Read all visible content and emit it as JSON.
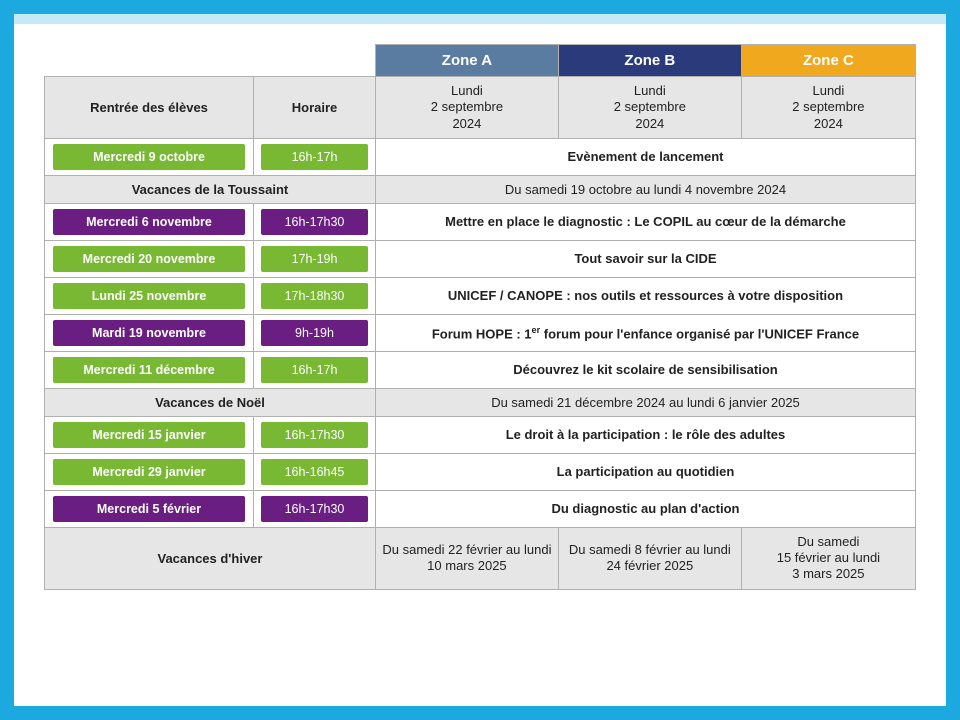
{
  "colors": {
    "frame": "#1ca9e0",
    "headerBand": "#c6e9f7",
    "zoneA": "#5b7ca1",
    "zoneB": "#2a3a7a",
    "zoneC": "#f0a81e",
    "green": "#78b833",
    "purple": "#6a1e82",
    "greyCell": "#e6e6e6",
    "border": "#b0b0b0",
    "text": "#222222"
  },
  "zones": {
    "a": "Zone A",
    "b": "Zone B",
    "c": "Zone C"
  },
  "headers": {
    "rentree": "Rentrée des élèves",
    "horaire": "Horaire"
  },
  "rentreeDates": {
    "a": "Lundi\n2 septembre\n2024",
    "b": "Lundi\n2 septembre\n2024",
    "c": "Lundi\n2 septembre\n2024"
  },
  "rows": [
    {
      "kind": "event",
      "color": "green",
      "date": "Mercredi 9 octobre",
      "time": "16h-17h",
      "desc": "Evènement de lancement"
    },
    {
      "kind": "holiday-merged",
      "label": "Vacances de la Toussaint",
      "range": "Du samedi 19 octobre au lundi 4 novembre 2024"
    },
    {
      "kind": "event",
      "color": "purple",
      "date": "Mercredi 6 novembre",
      "time": "16h-17h30",
      "desc": "Mettre en place le diagnostic : Le COPIL au cœur de la démarche"
    },
    {
      "kind": "event",
      "color": "green",
      "date": "Mercredi 20 novembre",
      "time": "17h-19h",
      "desc": "Tout savoir sur la CIDE"
    },
    {
      "kind": "event",
      "color": "green",
      "date": "Lundi 25 novembre",
      "time": "17h-18h30",
      "desc": "UNICEF / CANOPE : nos outils et ressources à votre disposition"
    },
    {
      "kind": "event",
      "color": "purple",
      "date": "Mardi 19 novembre",
      "time": "9h-19h",
      "descHtml": "Forum HOPE : 1<sup>er</sup> forum pour l'enfance organisé par l'UNICEF France"
    },
    {
      "kind": "event",
      "color": "green",
      "date": "Mercredi 11 décembre",
      "time": "16h-17h",
      "desc": "Découvrez le kit scolaire de sensibilisation"
    },
    {
      "kind": "holiday-merged",
      "label": "Vacances de Noël",
      "range": "Du samedi 21 décembre 2024 au lundi 6 janvier 2025"
    },
    {
      "kind": "event",
      "color": "green",
      "date": "Mercredi 15 janvier",
      "time": "16h-17h30",
      "desc": "Le droit à la participation : le rôle des adultes"
    },
    {
      "kind": "event",
      "color": "green",
      "date": "Mercredi 29 janvier",
      "time": "16h-16h45",
      "desc": "La participation au quotidien"
    },
    {
      "kind": "event",
      "color": "purple",
      "date": "Mercredi 5 février",
      "time": "16h-17h30",
      "desc": "Du diagnostic au plan d'action"
    },
    {
      "kind": "holiday-split",
      "label": "Vacances d'hiver",
      "a": "Du samedi 22 février au lundi\n10 mars 2025",
      "b": "Du samedi 8 février au lundi\n24 février 2025",
      "c": "Du samedi\n15 février au lundi\n3 mars 2025"
    }
  ],
  "fontsize": {
    "body": 13,
    "zoneHead": 15,
    "pill": 12.5
  }
}
